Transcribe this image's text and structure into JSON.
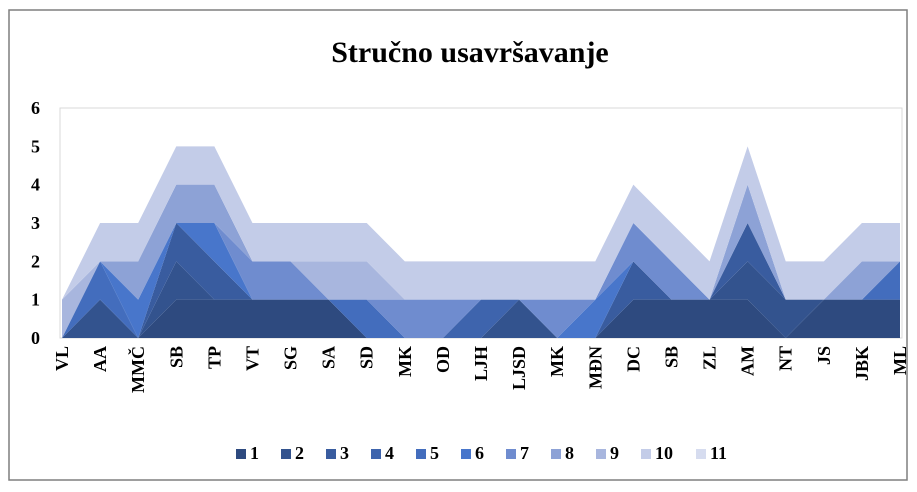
{
  "chart_data": {
    "type": "stacked_area",
    "title": "Stručno usavršavanje",
    "categories": [
      "VL",
      "AA",
      "MMČ",
      "SB",
      "TP",
      "VT",
      "SG",
      "SA",
      "SD",
      "MK",
      "OD",
      "LJH",
      "LJSD",
      "MK",
      "MĐN",
      "DC",
      "SB",
      "ZL",
      "AM",
      "NT",
      "JS",
      "JBK",
      "ML"
    ],
    "ylim": [
      0,
      6
    ],
    "yticks": [
      0,
      1,
      2,
      3,
      4,
      5,
      6
    ],
    "grid": false,
    "legend": "bottom",
    "series": [
      {
        "name": "1",
        "color": "#2e4a7f",
        "values": [
          0,
          0,
          0,
          1,
          1,
          1,
          1,
          1,
          0,
          0,
          0,
          0,
          0,
          0,
          0,
          1,
          1,
          1,
          1,
          0,
          1,
          1,
          1
        ]
      },
      {
        "name": "2",
        "color": "#33538e",
        "values": [
          0,
          1,
          0,
          1,
          0,
          0,
          0,
          0,
          0,
          0,
          0,
          0,
          1,
          0,
          0,
          0,
          0,
          0,
          1,
          1,
          0,
          0,
          0
        ]
      },
      {
        "name": "3",
        "color": "#395c9f",
        "values": [
          0,
          0,
          0,
          1,
          1,
          0,
          0,
          0,
          0,
          0,
          0,
          0,
          0,
          0,
          0,
          1,
          0,
          0,
          1,
          0,
          0,
          0,
          0
        ]
      },
      {
        "name": "4",
        "color": "#3e64ad",
        "values": [
          0,
          0,
          0,
          0,
          0,
          0,
          0,
          0,
          0,
          0,
          0,
          1,
          0,
          0,
          0,
          0,
          0,
          0,
          0,
          0,
          0,
          0,
          0
        ]
      },
      {
        "name": "5",
        "color": "#436dbd",
        "values": [
          0,
          1,
          0,
          0,
          0,
          0,
          0,
          0,
          1,
          0,
          0,
          0,
          0,
          0,
          0,
          0,
          0,
          0,
          0,
          0,
          0,
          0,
          1
        ]
      },
      {
        "name": "6",
        "color": "#4876cb",
        "values": [
          0,
          0,
          1,
          0,
          1,
          0,
          0,
          0,
          0,
          0,
          0,
          0,
          0,
          0,
          1,
          0,
          0,
          0,
          0,
          0,
          0,
          0,
          0
        ]
      },
      {
        "name": "7",
        "color": "#6f8ccf",
        "values": [
          0,
          0,
          0,
          0,
          0,
          1,
          1,
          0,
          0,
          1,
          1,
          0,
          0,
          1,
          0,
          1,
          1,
          0,
          0,
          0,
          0,
          0,
          0
        ]
      },
      {
        "name": "8",
        "color": "#8da2d6",
        "values": [
          0,
          0,
          1,
          1,
          1,
          0,
          0,
          0,
          0,
          0,
          0,
          0,
          0,
          0,
          0,
          0,
          0,
          0,
          1,
          0,
          0,
          1,
          0
        ]
      },
      {
        "name": "9",
        "color": "#a8b6de",
        "values": [
          1,
          0,
          0,
          0,
          0,
          0,
          0,
          1,
          1,
          0,
          0,
          0,
          0,
          0,
          0,
          0,
          0,
          0,
          0,
          0,
          0,
          0,
          0
        ]
      },
      {
        "name": "10",
        "color": "#c3cce8",
        "values": [
          0,
          1,
          1,
          1,
          1,
          1,
          1,
          1,
          1,
          1,
          1,
          1,
          1,
          1,
          1,
          1,
          1,
          1,
          1,
          1,
          1,
          1,
          1
        ]
      },
      {
        "name": "11",
        "color": "#d6dcef",
        "values": [
          0,
          0,
          0,
          0,
          0,
          0,
          0,
          0,
          0,
          0,
          0,
          0,
          0,
          0,
          0,
          0,
          0,
          0,
          0,
          0,
          0,
          0,
          0
        ]
      }
    ]
  }
}
